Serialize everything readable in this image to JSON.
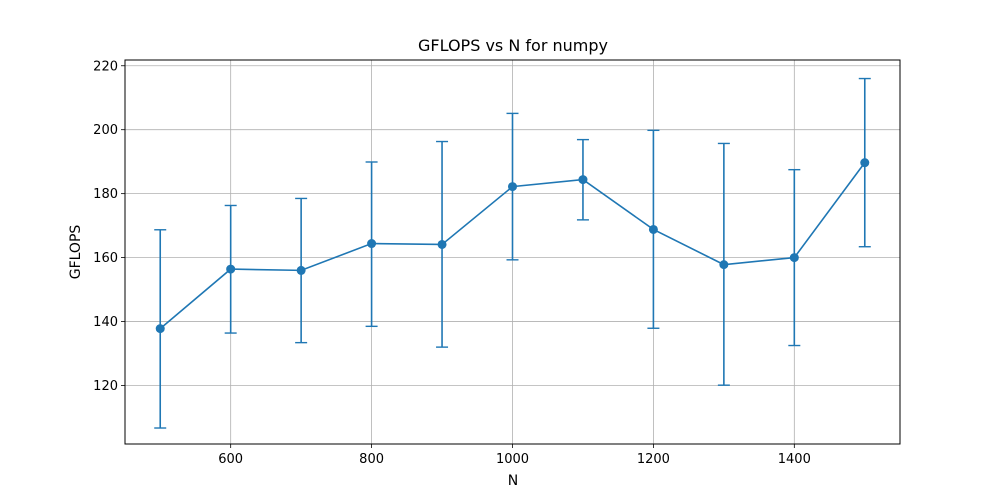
{
  "chart_data": {
    "type": "line",
    "title": "GFLOPS vs N for numpy",
    "xlabel": "N",
    "ylabel": "GFLOPS",
    "xlim": [
      450,
      1550
    ],
    "ylim": [
      101.7,
      221.8
    ],
    "xticks": [
      600,
      800,
      1000,
      1200,
      1400
    ],
    "yticks": [
      120,
      140,
      160,
      180,
      200,
      220
    ],
    "grid": true,
    "color": "#1f77b4",
    "series": [
      {
        "x": [
          500,
          600,
          700,
          800,
          900,
          1000,
          1100,
          1200,
          1300,
          1400,
          1500
        ],
        "y": [
          137.8,
          156.4,
          156.0,
          164.4,
          164.1,
          182.2,
          184.4,
          168.8,
          157.8,
          160.0,
          189.7
        ],
        "yerr_low": [
          106.7,
          136.4,
          133.4,
          138.5,
          132.0,
          159.3,
          171.8,
          137.9,
          120.1,
          132.5,
          163.4
        ],
        "yerr_high": [
          168.7,
          176.3,
          178.5,
          189.9,
          196.3,
          205.1,
          196.9,
          199.8,
          195.7,
          187.5,
          216.0
        ]
      }
    ]
  }
}
